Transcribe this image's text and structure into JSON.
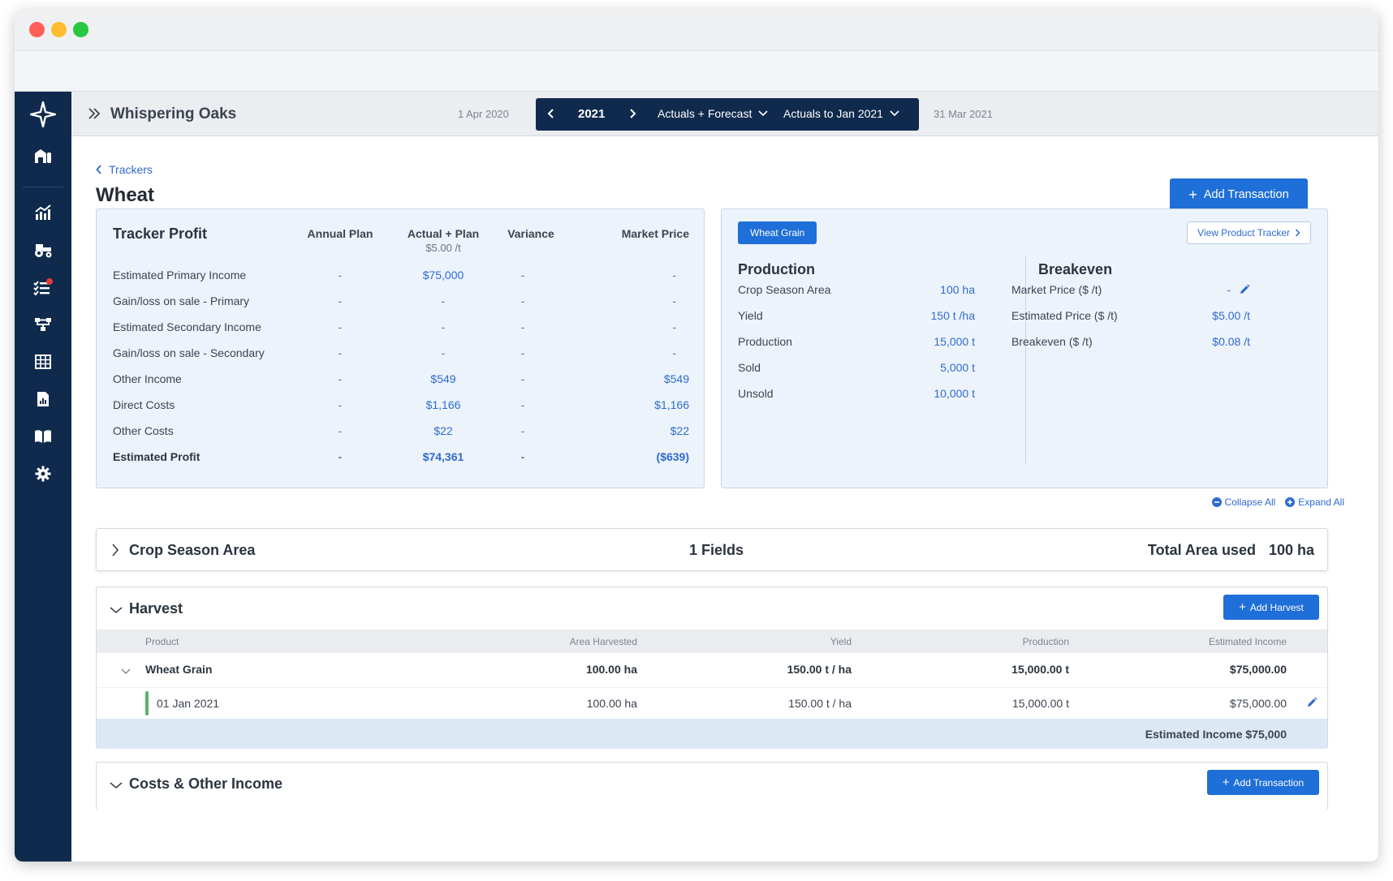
{
  "header": {
    "farm_name": "Whispering Oaks",
    "period_start": "1 Apr 2020",
    "period_end": "31 Mar 2021",
    "year": "2021",
    "view_mode": "Actuals + Forecast",
    "actuals_to": "Actuals to Jan 2021"
  },
  "page": {
    "breadcrumb": "Trackers",
    "title": "Wheat",
    "add_transaction": "Add Transaction"
  },
  "tracker_profit": {
    "title": "Tracker Profit",
    "columns": [
      "Annual Plan",
      "Actual + Plan",
      "Variance",
      "Market Price"
    ],
    "actual_plan_sub": "$5.00 /t",
    "rows": [
      {
        "label": "Estimated Primary Income",
        "plan": "-",
        "actual": "$75,000",
        "variance": "-",
        "market": "-"
      },
      {
        "label": "Gain/loss on sale - Primary",
        "plan": "-",
        "actual": "-",
        "variance": "-",
        "market": "-"
      },
      {
        "label": "Estimated Secondary Income",
        "plan": "-",
        "actual": "-",
        "variance": "-",
        "market": "-"
      },
      {
        "label": "Gain/loss on sale - Secondary",
        "plan": "-",
        "actual": "-",
        "variance": "-",
        "market": "-"
      },
      {
        "label": "Other Income",
        "plan": "-",
        "actual": "$549",
        "variance": "-",
        "market": "$549"
      },
      {
        "label": "Direct Costs",
        "plan": "-",
        "actual": "$1,166",
        "variance": "-",
        "market": "$1,166"
      },
      {
        "label": "Other Costs",
        "plan": "-",
        "actual": "$22",
        "variance": "-",
        "market": "$22"
      },
      {
        "label": "Estimated Profit",
        "plan": "-",
        "actual": "$74,361",
        "variance": "-",
        "market": "($639)"
      }
    ]
  },
  "product": {
    "chip": "Wheat Grain",
    "view_tracker": "View Product Tracker",
    "production_title": "Production",
    "production": [
      {
        "label": "Crop Season Area",
        "value": "100 ha"
      },
      {
        "label": "Yield",
        "value": "150 t /ha"
      },
      {
        "label": "Production",
        "value": "15,000 t"
      },
      {
        "label": "Sold",
        "value": "5,000 t"
      },
      {
        "label": "Unsold",
        "value": "10,000 t"
      }
    ],
    "breakeven_title": "Breakeven",
    "breakeven": [
      {
        "label": "Market Price ($ /t)",
        "value": "-"
      },
      {
        "label": "Estimated Price ($ /t)",
        "value": "$5.00 /t"
      },
      {
        "label": "Breakeven ($ /t)",
        "value": "$0.08 /t"
      }
    ]
  },
  "controls": {
    "collapse_all": "Collapse All",
    "expand_all": "Expand All"
  },
  "crop_season": {
    "title": "Crop Season Area",
    "fields": "1 Fields",
    "total_label": "Total Area used",
    "total_value": "100 ha"
  },
  "harvest": {
    "title": "Harvest",
    "add_button": "Add Harvest",
    "columns": [
      "Product",
      "Area Harvested",
      "Yield",
      "Production",
      "Estimated Income"
    ],
    "group": {
      "product": "Wheat Grain",
      "area": "100.00 ha",
      "yield": "150.00 t / ha",
      "production": "15,000.00 t",
      "income": "$75,000.00"
    },
    "entry": {
      "date": "01 Jan 2021",
      "area": "100.00 ha",
      "yield": "150.00 t / ha",
      "production": "15,000.00 t",
      "income": "$75,000.00"
    },
    "footer": "Estimated Income $75,000"
  },
  "costs": {
    "title": "Costs & Other Income",
    "add_button": "Add Transaction"
  }
}
